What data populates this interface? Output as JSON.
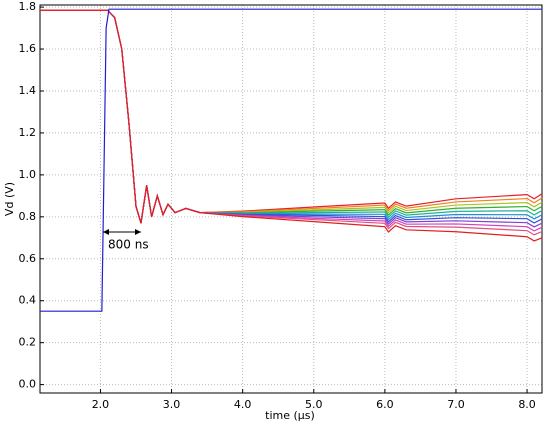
{
  "chart_data": {
    "type": "line",
    "x_label": "time (µs)",
    "y_label": "Vd (V)",
    "annotation": "800 ns",
    "grid": true,
    "xlim": [
      1.15,
      8.21
    ],
    "ylim": [
      -0.04,
      1.81
    ],
    "xticks": [
      {
        "value": 2,
        "label": "2.0"
      },
      {
        "value": 3,
        "label": "3.0"
      },
      {
        "value": 4,
        "label": "4.0"
      },
      {
        "value": 5,
        "label": "5.0"
      },
      {
        "value": 6,
        "label": "6.0"
      },
      {
        "value": 7,
        "label": "7.0"
      },
      {
        "value": 8,
        "label": "8.0"
      }
    ],
    "yticks": [
      {
        "value": 0,
        "label": "0.0"
      },
      {
        "value": 0.2,
        "label": "0.2"
      },
      {
        "value": 0.4,
        "label": "0.4"
      },
      {
        "value": 0.6,
        "label": "0.6"
      },
      {
        "value": 0.8,
        "label": "0.8"
      },
      {
        "value": 1,
        "label": "1.0"
      },
      {
        "value": 1.2,
        "label": "1.2"
      },
      {
        "value": 1.4,
        "label": "1.4"
      },
      {
        "value": 1.6,
        "label": "1.6"
      },
      {
        "value": 1.8,
        "label": "1.8"
      }
    ],
    "x": [
      1.15,
      2.1,
      2.2,
      2.3,
      2.4,
      2.5,
      2.57,
      2.65,
      2.72,
      2.8,
      2.88,
      2.95,
      3.05,
      3.2,
      3.4,
      4.0,
      5.0,
      6.0,
      6.05,
      6.15,
      6.3,
      7.0,
      8.0,
      8.1,
      8.21
    ],
    "series": [
      {
        "color": "#e8202a",
        "values": [
          1.785,
          1.785,
          1.75,
          1.6,
          1.25,
          0.85,
          0.77,
          0.95,
          0.8,
          0.9,
          0.81,
          0.86,
          0.82,
          0.84,
          0.82,
          0.827,
          0.847,
          0.866,
          0.841,
          0.871,
          0.851,
          0.886,
          0.906,
          0.886,
          0.91
        ]
      },
      {
        "color": "#f08020",
        "values": [
          1.785,
          1.785,
          1.75,
          1.6,
          1.25,
          0.85,
          0.77,
          0.95,
          0.8,
          0.9,
          0.81,
          0.86,
          0.82,
          0.84,
          0.82,
          0.824,
          0.84,
          0.856,
          0.831,
          0.861,
          0.841,
          0.871,
          0.887,
          0.867,
          0.89
        ]
      },
      {
        "color": "#b0c020",
        "values": [
          1.785,
          1.785,
          1.75,
          1.6,
          1.25,
          0.85,
          0.77,
          0.95,
          0.8,
          0.9,
          0.81,
          0.86,
          0.82,
          0.84,
          0.82,
          0.822,
          0.833,
          0.845,
          0.82,
          0.85,
          0.83,
          0.856,
          0.868,
          0.848,
          0.87
        ]
      },
      {
        "color": "#30b030",
        "values": [
          1.785,
          1.785,
          1.75,
          1.6,
          1.25,
          0.85,
          0.77,
          0.95,
          0.8,
          0.9,
          0.81,
          0.86,
          0.82,
          0.84,
          0.82,
          0.819,
          0.827,
          0.834,
          0.809,
          0.839,
          0.819,
          0.841,
          0.849,
          0.829,
          0.85
        ]
      },
      {
        "color": "#20b0a0",
        "values": [
          1.785,
          1.785,
          1.75,
          1.6,
          1.25,
          0.85,
          0.77,
          0.95,
          0.8,
          0.9,
          0.81,
          0.86,
          0.82,
          0.84,
          0.82,
          0.817,
          0.82,
          0.823,
          0.798,
          0.828,
          0.808,
          0.826,
          0.829,
          0.809,
          0.83
        ]
      },
      {
        "color": "#2090d0",
        "values": [
          1.785,
          1.785,
          1.75,
          1.6,
          1.25,
          0.85,
          0.77,
          0.95,
          0.8,
          0.9,
          0.81,
          0.86,
          0.82,
          0.84,
          0.82,
          0.814,
          0.813,
          0.812,
          0.787,
          0.817,
          0.797,
          0.811,
          0.81,
          0.79,
          0.81
        ]
      },
      {
        "color": "#3050e0",
        "values": [
          1.785,
          1.785,
          1.75,
          1.6,
          1.25,
          0.85,
          0.77,
          0.95,
          0.8,
          0.9,
          0.81,
          0.86,
          0.82,
          0.84,
          0.82,
          0.812,
          0.807,
          0.801,
          0.776,
          0.806,
          0.786,
          0.796,
          0.791,
          0.771,
          0.79
        ]
      },
      {
        "color": "#8040d0",
        "values": [
          1.785,
          1.785,
          1.75,
          1.6,
          1.25,
          0.85,
          0.77,
          0.95,
          0.8,
          0.9,
          0.81,
          0.86,
          0.82,
          0.84,
          0.82,
          0.809,
          0.8,
          0.791,
          0.766,
          0.796,
          0.776,
          0.781,
          0.772,
          0.752,
          0.77
        ]
      },
      {
        "color": "#d040c0",
        "values": [
          1.785,
          1.785,
          1.75,
          1.6,
          1.25,
          0.85,
          0.77,
          0.95,
          0.8,
          0.9,
          0.81,
          0.86,
          0.82,
          0.84,
          0.82,
          0.807,
          0.793,
          0.78,
          0.755,
          0.785,
          0.765,
          0.766,
          0.753,
          0.733,
          0.75
        ]
      },
      {
        "color": "#e05080",
        "values": [
          1.785,
          1.785,
          1.75,
          1.6,
          1.25,
          0.85,
          0.77,
          0.95,
          0.8,
          0.9,
          0.81,
          0.86,
          0.82,
          0.84,
          0.82,
          0.804,
          0.787,
          0.769,
          0.744,
          0.774,
          0.754,
          0.751,
          0.734,
          0.714,
          0.73
        ]
      },
      {
        "color": "#e02020",
        "values": [
          1.785,
          1.785,
          1.75,
          1.6,
          1.25,
          0.85,
          0.77,
          0.95,
          0.8,
          0.9,
          0.81,
          0.86,
          0.82,
          0.84,
          0.82,
          0.801,
          0.777,
          0.753,
          0.728,
          0.758,
          0.738,
          0.729,
          0.705,
          0.685,
          0.7
        ]
      },
      {
        "color": "#1f1fd0",
        "x": [
          1.15,
          2.02,
          2.08,
          2.12,
          8.21
        ],
        "values": [
          0.35,
          0.35,
          1.7,
          1.79,
          1.79
        ]
      }
    ]
  }
}
